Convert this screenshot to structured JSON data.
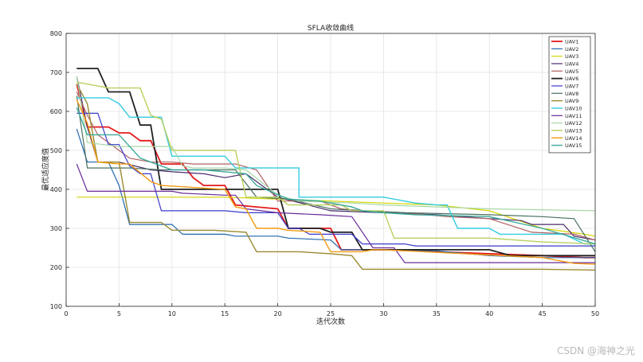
{
  "watermark": "CSDN @海神之光",
  "chart_data": {
    "type": "line",
    "title": "SFLA收敛曲线",
    "xlabel": "迭代次数",
    "ylabel": "最优适应度值",
    "xlim": [
      0,
      50
    ],
    "ylim": [
      100,
      800
    ],
    "xticks": [
      0,
      5,
      10,
      15,
      20,
      25,
      30,
      35,
      40,
      45,
      50
    ],
    "yticks": [
      100,
      200,
      300,
      400,
      500,
      600,
      700,
      800
    ],
    "grid": true,
    "legend_position": "top-right",
    "series": [
      {
        "name": "UAV1",
        "color": "#e41a1c",
        "width": 1.8,
        "points": [
          [
            1,
            670
          ],
          [
            2,
            560
          ],
          [
            4,
            560
          ],
          [
            5,
            545
          ],
          [
            6,
            545
          ],
          [
            7,
            525
          ],
          [
            8,
            525
          ],
          [
            9,
            465
          ],
          [
            11,
            465
          ],
          [
            12,
            430
          ],
          [
            13,
            410
          ],
          [
            15,
            410
          ],
          [
            16,
            360
          ],
          [
            18,
            355
          ],
          [
            20,
            350
          ],
          [
            21,
            300
          ],
          [
            25,
            300
          ],
          [
            26,
            245
          ],
          [
            30,
            245
          ],
          [
            35,
            240
          ],
          [
            40,
            235
          ],
          [
            45,
            230
          ],
          [
            49,
            225
          ],
          [
            50,
            225
          ]
        ]
      },
      {
        "name": "UAV2",
        "color": "#2166ac",
        "width": 1.2,
        "points": [
          [
            1,
            555
          ],
          [
            2,
            470
          ],
          [
            4,
            470
          ],
          [
            5,
            410
          ],
          [
            6,
            310
          ],
          [
            10,
            310
          ],
          [
            11,
            285
          ],
          [
            15,
            285
          ],
          [
            16,
            280
          ],
          [
            20,
            280
          ],
          [
            21,
            275
          ],
          [
            25,
            270
          ],
          [
            26,
            245
          ],
          [
            30,
            245
          ],
          [
            35,
            242
          ],
          [
            40,
            230
          ],
          [
            45,
            225
          ],
          [
            50,
            225
          ]
        ]
      },
      {
        "name": "UAV3",
        "color": "#d4d400",
        "width": 1.2,
        "points": [
          [
            1,
            380
          ],
          [
            15,
            380
          ],
          [
            20,
            375
          ],
          [
            25,
            370
          ],
          [
            30,
            365
          ],
          [
            35,
            360
          ],
          [
            40,
            345
          ],
          [
            45,
            300
          ],
          [
            49,
            285
          ],
          [
            50,
            280
          ]
        ]
      },
      {
        "name": "UAV4",
        "color": "#4a2a6e",
        "width": 1.2,
        "points": [
          [
            1,
            690
          ],
          [
            2,
            560
          ],
          [
            3,
            470
          ],
          [
            5,
            470
          ],
          [
            8,
            450
          ],
          [
            10,
            445
          ],
          [
            13,
            440
          ],
          [
            15,
            430
          ],
          [
            17,
            440
          ],
          [
            20,
            380
          ],
          [
            25,
            345
          ],
          [
            30,
            340
          ],
          [
            35,
            335
          ],
          [
            40,
            325
          ],
          [
            43,
            320
          ],
          [
            44,
            310
          ],
          [
            47,
            310
          ],
          [
            48,
            280
          ],
          [
            49,
            275
          ],
          [
            50,
            270
          ]
        ]
      },
      {
        "name": "UAV5",
        "color": "#b06060",
        "width": 1.2,
        "points": [
          [
            1,
            650
          ],
          [
            2,
            590
          ],
          [
            3,
            540
          ],
          [
            6,
            480
          ],
          [
            8,
            470
          ],
          [
            10,
            470
          ],
          [
            12,
            465
          ],
          [
            16,
            465
          ],
          [
            18,
            450
          ],
          [
            20,
            370
          ],
          [
            24,
            370
          ],
          [
            26,
            350
          ],
          [
            28,
            345
          ],
          [
            32,
            340
          ],
          [
            36,
            330
          ],
          [
            40,
            325
          ],
          [
            44,
            290
          ],
          [
            48,
            285
          ],
          [
            50,
            270
          ]
        ]
      },
      {
        "name": "UAV6",
        "color": "#222222",
        "width": 1.8,
        "points": [
          [
            1,
            710
          ],
          [
            3,
            710
          ],
          [
            4,
            650
          ],
          [
            6,
            650
          ],
          [
            7,
            565
          ],
          [
            8,
            565
          ],
          [
            9,
            400
          ],
          [
            20,
            400
          ],
          [
            21,
            300
          ],
          [
            22,
            300
          ],
          [
            24,
            300
          ],
          [
            25,
            290
          ],
          [
            27,
            290
          ],
          [
            28,
            245
          ],
          [
            40,
            245
          ],
          [
            42,
            230
          ],
          [
            50,
            230
          ]
        ]
      },
      {
        "name": "UAV7",
        "color": "#3a3acc",
        "width": 1.2,
        "points": [
          [
            1,
            595
          ],
          [
            3,
            595
          ],
          [
            4,
            515
          ],
          [
            5,
            515
          ],
          [
            6,
            460
          ],
          [
            7,
            440
          ],
          [
            8,
            440
          ],
          [
            9,
            345
          ],
          [
            14,
            345
          ],
          [
            15,
            345
          ],
          [
            17,
            340
          ],
          [
            20,
            340
          ],
          [
            21,
            300
          ],
          [
            22,
            300
          ],
          [
            23,
            285
          ],
          [
            27,
            285
          ],
          [
            28,
            260
          ],
          [
            32,
            260
          ],
          [
            33,
            255
          ],
          [
            45,
            255
          ],
          [
            50,
            255
          ]
        ]
      },
      {
        "name": "UAV8",
        "color": "#4a7060",
        "width": 1.2,
        "points": [
          [
            1,
            640
          ],
          [
            2,
            455
          ],
          [
            5,
            455
          ],
          [
            6,
            455
          ],
          [
            9,
            450
          ],
          [
            13,
            450
          ],
          [
            16,
            450
          ],
          [
            18,
            380
          ],
          [
            21,
            375
          ],
          [
            25,
            350
          ],
          [
            28,
            345
          ],
          [
            32,
            340
          ],
          [
            40,
            335
          ],
          [
            45,
            330
          ],
          [
            48,
            325
          ],
          [
            50,
            240
          ]
        ]
      },
      {
        "name": "UAV9",
        "color": "#9a8a30",
        "width": 1.4,
        "points": [
          [
            1,
            670
          ],
          [
            2,
            620
          ],
          [
            3,
            470
          ],
          [
            5,
            470
          ],
          [
            6,
            315
          ],
          [
            9,
            315
          ],
          [
            10,
            295
          ],
          [
            14,
            295
          ],
          [
            17,
            290
          ],
          [
            18,
            240
          ],
          [
            22,
            240
          ],
          [
            25,
            235
          ],
          [
            27,
            230
          ],
          [
            28,
            195
          ],
          [
            45,
            195
          ],
          [
            50,
            193
          ]
        ]
      },
      {
        "name": "UAV10",
        "color": "#33cce0",
        "width": 1.4,
        "points": [
          [
            1,
            635
          ],
          [
            4,
            635
          ],
          [
            5,
            620
          ],
          [
            6,
            585
          ],
          [
            9,
            585
          ],
          [
            10,
            485
          ],
          [
            15,
            485
          ],
          [
            16,
            455
          ],
          [
            22,
            455
          ],
          [
            22,
            380
          ],
          [
            30,
            380
          ],
          [
            33,
            365
          ],
          [
            35,
            360
          ],
          [
            36,
            360
          ],
          [
            37,
            300
          ],
          [
            40,
            300
          ],
          [
            41,
            285
          ],
          [
            47,
            285
          ],
          [
            49,
            260
          ],
          [
            50,
            260
          ]
        ]
      },
      {
        "name": "UAV11",
        "color": "#6a2c9a",
        "width": 1.2,
        "points": [
          [
            1,
            465
          ],
          [
            2,
            395
          ],
          [
            5,
            395
          ],
          [
            8,
            395
          ],
          [
            10,
            395
          ],
          [
            11,
            390
          ],
          [
            15,
            385
          ],
          [
            16,
            385
          ],
          [
            17,
            350
          ],
          [
            20,
            340
          ],
          [
            24,
            335
          ],
          [
            27,
            330
          ],
          [
            29,
            250
          ],
          [
            31,
            250
          ],
          [
            32,
            212
          ],
          [
            50,
            212
          ]
        ]
      },
      {
        "name": "UAV12",
        "color": "#a8d8a8",
        "width": 1.2,
        "points": [
          [
            1,
            690
          ],
          [
            2,
            520
          ],
          [
            5,
            510
          ],
          [
            10,
            510
          ],
          [
            11,
            460
          ],
          [
            12,
            455
          ],
          [
            15,
            455
          ],
          [
            17,
            450
          ],
          [
            20,
            385
          ],
          [
            22,
            370
          ],
          [
            27,
            365
          ],
          [
            30,
            360
          ],
          [
            35,
            355
          ],
          [
            40,
            350
          ],
          [
            50,
            345
          ]
        ]
      },
      {
        "name": "UAV13",
        "color": "#b8d060",
        "width": 1.4,
        "points": [
          [
            1,
            675
          ],
          [
            3,
            665
          ],
          [
            4,
            660
          ],
          [
            7,
            660
          ],
          [
            8,
            590
          ],
          [
            9,
            580
          ],
          [
            10,
            500
          ],
          [
            16,
            500
          ],
          [
            17,
            380
          ],
          [
            20,
            380
          ],
          [
            21,
            360
          ],
          [
            26,
            360
          ],
          [
            27,
            345
          ],
          [
            30,
            345
          ],
          [
            31,
            275
          ],
          [
            40,
            275
          ],
          [
            45,
            265
          ],
          [
            50,
            260
          ]
        ]
      },
      {
        "name": "UAV14",
        "color": "#f39c12",
        "width": 1.4,
        "points": [
          [
            1,
            630
          ],
          [
            2,
            570
          ],
          [
            3,
            470
          ],
          [
            5,
            465
          ],
          [
            6,
            465
          ],
          [
            8,
            420
          ],
          [
            9,
            410
          ],
          [
            12,
            405
          ],
          [
            15,
            400
          ],
          [
            16,
            355
          ],
          [
            17,
            350
          ],
          [
            18,
            300
          ],
          [
            20,
            300
          ],
          [
            21,
            295
          ],
          [
            24,
            290
          ],
          [
            25,
            240
          ],
          [
            28,
            240
          ],
          [
            29,
            245
          ],
          [
            30,
            245
          ],
          [
            45,
            225
          ],
          [
            48,
            210
          ],
          [
            50,
            208
          ]
        ]
      },
      {
        "name": "UAV15",
        "color": "#3aaa9a",
        "width": 1.4,
        "points": [
          [
            1,
            610
          ],
          [
            2,
            540
          ],
          [
            5,
            540
          ],
          [
            7,
            480
          ],
          [
            8,
            470
          ],
          [
            10,
            450
          ],
          [
            13,
            450
          ],
          [
            15,
            445
          ],
          [
            17,
            440
          ],
          [
            18,
            410
          ],
          [
            21,
            375
          ],
          [
            24,
            370
          ],
          [
            27,
            355
          ],
          [
            28,
            345
          ],
          [
            30,
            340
          ],
          [
            33,
            335
          ],
          [
            40,
            330
          ],
          [
            45,
            300
          ],
          [
            50,
            260
          ]
        ]
      }
    ]
  }
}
